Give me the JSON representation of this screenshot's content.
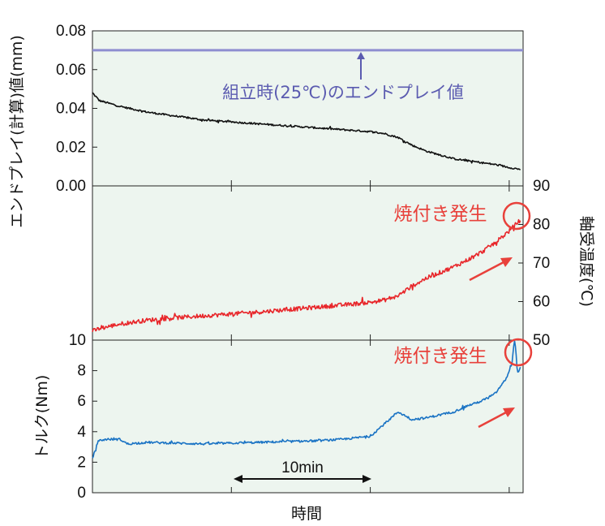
{
  "chart_data": [
    {
      "type": "line",
      "panel": "endplay",
      "ylabel": "エンドプレイ(計算)値(mm)",
      "ylim": [
        0,
        0.08
      ],
      "yticks": [
        "0.08",
        "0.06",
        "0.04",
        "0.02",
        "0.00"
      ],
      "xlim": [
        0,
        31
      ],
      "annotation": "組立時(25℃)のエンドプレイ値",
      "colors": {
        "reference": "#8e8ed0",
        "series": "#111111",
        "annotation": "#5b5bb0"
      },
      "series": [
        {
          "values": [
            0.07,
            0.07
          ],
          "x": [
            0,
            31
          ],
          "style": "reference"
        },
        {
          "x": [
            0,
            0.5,
            2,
            4,
            6,
            8,
            10,
            12,
            14,
            16,
            18,
            20,
            21,
            22,
            23,
            24,
            25,
            26,
            27,
            28,
            29,
            30,
            30.8
          ],
          "values": [
            0.048,
            0.044,
            0.041,
            0.038,
            0.036,
            0.034,
            0.033,
            0.032,
            0.031,
            0.03,
            0.029,
            0.028,
            0.027,
            0.025,
            0.021,
            0.018,
            0.016,
            0.014,
            0.013,
            0.012,
            0.011,
            0.0095,
            0.0085
          ],
          "style": "noisy"
        }
      ]
    },
    {
      "type": "line",
      "panel": "temperature",
      "ylabel": "軸受温度(℃)",
      "ylim": [
        50,
        90
      ],
      "yticks": [
        "90",
        "80",
        "70",
        "60",
        "50"
      ],
      "xlim": [
        0,
        31
      ],
      "annotation": "焼付き発生",
      "colors": {
        "series": "#e8262a",
        "annotation": "#e8413b"
      },
      "series": [
        {
          "x": [
            0,
            0.5,
            2,
            4,
            6,
            8,
            10,
            12,
            14,
            16,
            18,
            20,
            21,
            22,
            23,
            24,
            25,
            26,
            27,
            28,
            29,
            30,
            30.8
          ],
          "values": [
            52.3,
            53.0,
            54.2,
            55.2,
            55.8,
            56.3,
            56.8,
            57.3,
            57.9,
            58.5,
            59.1,
            59.8,
            60.4,
            61.5,
            64.0,
            66.0,
            67.5,
            69.0,
            70.8,
            72.8,
            75.3,
            78.3,
            81.2
          ],
          "style": "noisy"
        }
      ]
    },
    {
      "type": "line",
      "panel": "torque",
      "ylabel": "トルク(Nm)",
      "xlabel": "時間",
      "ylim": [
        0,
        10
      ],
      "yticks": [
        "10",
        "8",
        "6",
        "4",
        "2",
        "0"
      ],
      "xlim": [
        0,
        31
      ],
      "annotation": "焼付き発生",
      "duration_label": "10min",
      "colors": {
        "series": "#1a73c4",
        "annotation": "#e8413b"
      },
      "series": [
        {
          "x": [
            0,
            0.4,
            1,
            2,
            2.5,
            4,
            6,
            8,
            10,
            12,
            14,
            16,
            18,
            20,
            21,
            22,
            23,
            24,
            25,
            26,
            27,
            28,
            29,
            29.8,
            30.2,
            30.4,
            30.6,
            30.8
          ],
          "values": [
            2.2,
            3.4,
            3.5,
            3.5,
            3.2,
            3.3,
            3.25,
            3.2,
            3.25,
            3.3,
            3.35,
            3.4,
            3.5,
            3.7,
            4.5,
            5.3,
            4.8,
            4.9,
            5.1,
            5.3,
            5.7,
            6.0,
            6.5,
            7.5,
            8.5,
            10.2,
            7.8,
            8.2
          ],
          "style": "noisy"
        }
      ]
    }
  ]
}
